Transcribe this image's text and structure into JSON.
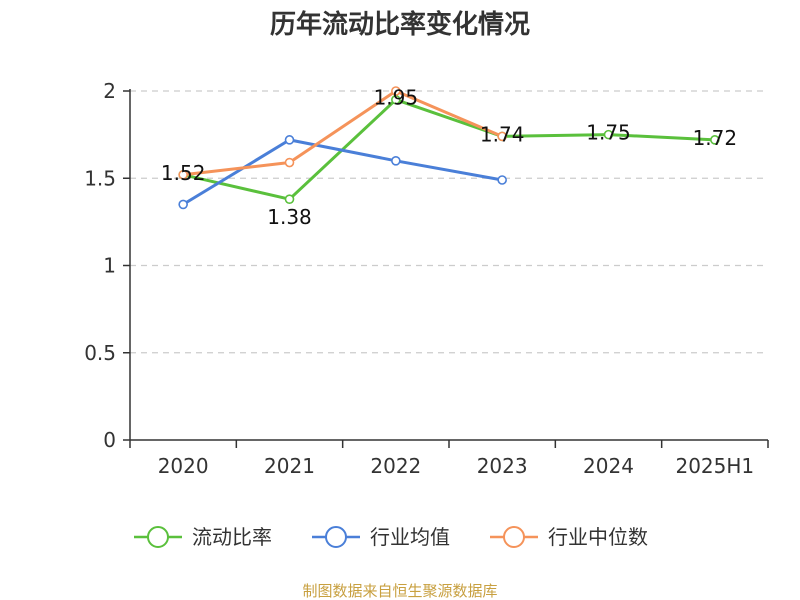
{
  "chart_data": {
    "type": "line",
    "title": "历年流动比率变化情况",
    "categories": [
      "2020",
      "2021",
      "2022",
      "2023",
      "2024",
      "2025H1"
    ],
    "ylim": [
      0,
      2
    ],
    "yticks": [
      "0",
      "0.5",
      "1",
      "1.5",
      "2"
    ],
    "grid": true,
    "legend_position": "bottom",
    "series": [
      {
        "name": "流动比率",
        "color": "#5ac03c",
        "values": [
          1.52,
          1.38,
          1.95,
          1.74,
          1.75,
          1.72
        ],
        "labels": [
          "1.52",
          "1.38",
          "1.95",
          "1.74",
          "1.75",
          "1.72"
        ]
      },
      {
        "name": "行业均值",
        "color": "#4a7fd8",
        "values": [
          1.35,
          1.72,
          1.6,
          1.49,
          null,
          null
        ]
      },
      {
        "name": "行业中位数",
        "color": "#f5935a",
        "values": [
          1.52,
          1.59,
          2.0,
          1.74,
          null,
          null
        ]
      }
    ]
  },
  "source": "制图数据来自恒生聚源数据库"
}
